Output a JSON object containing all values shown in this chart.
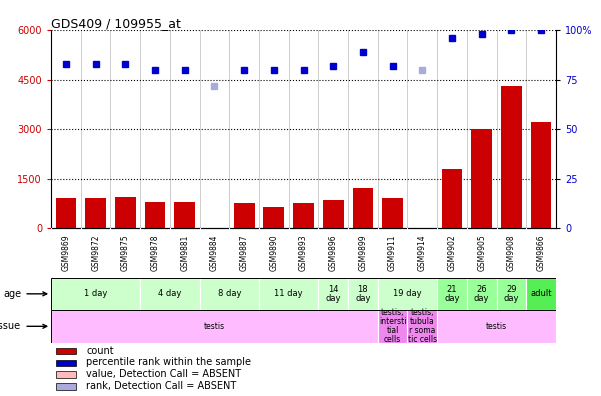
{
  "title": "GDS409 / 109955_at",
  "samples": [
    "GSM9869",
    "GSM9872",
    "GSM9875",
    "GSM9878",
    "GSM9881",
    "GSM9884",
    "GSM9887",
    "GSM9890",
    "GSM9893",
    "GSM9896",
    "GSM9899",
    "GSM9911",
    "GSM9914",
    "GSM9902",
    "GSM9905",
    "GSM9908",
    "GSM9866"
  ],
  "count_values": [
    900,
    900,
    950,
    800,
    800,
    0,
    750,
    650,
    750,
    850,
    1200,
    900,
    0,
    1800,
    3000,
    4300,
    3200
  ],
  "count_absent": [
    false,
    false,
    false,
    false,
    false,
    true,
    false,
    false,
    false,
    false,
    false,
    false,
    true,
    false,
    false,
    false,
    false
  ],
  "rank_values": [
    83,
    83,
    83,
    80,
    80,
    72,
    80,
    80,
    80,
    82,
    89,
    82,
    80,
    96,
    98,
    100,
    100
  ],
  "rank_absent_flags": [
    false,
    false,
    false,
    false,
    false,
    true,
    false,
    false,
    false,
    false,
    false,
    false,
    true,
    false,
    false,
    false,
    false
  ],
  "ylim_left": [
    0,
    6000
  ],
  "ylim_right": [
    0,
    100
  ],
  "yticks_left": [
    0,
    1500,
    3000,
    4500,
    6000
  ],
  "yticks_right": [
    0,
    25,
    50,
    75,
    100
  ],
  "bar_color": "#cc0000",
  "bar_absent_color": "#ffbbbb",
  "rank_color": "#0000cc",
  "rank_absent_color": "#aaaadd",
  "age_groups": [
    {
      "label": "1 day",
      "start": 0,
      "end": 3,
      "color": "#ccffcc"
    },
    {
      "label": "4 day",
      "start": 3,
      "end": 5,
      "color": "#ccffcc"
    },
    {
      "label": "8 day",
      "start": 5,
      "end": 7,
      "color": "#ccffcc"
    },
    {
      "label": "11 day",
      "start": 7,
      "end": 9,
      "color": "#ccffcc"
    },
    {
      "label": "14\nday",
      "start": 9,
      "end": 10,
      "color": "#ccffcc"
    },
    {
      "label": "18\nday",
      "start": 10,
      "end": 11,
      "color": "#ccffcc"
    },
    {
      "label": "19 day",
      "start": 11,
      "end": 13,
      "color": "#ccffcc"
    },
    {
      "label": "21\nday",
      "start": 13,
      "end": 14,
      "color": "#99ff99"
    },
    {
      "label": "26\nday",
      "start": 14,
      "end": 15,
      "color": "#99ff99"
    },
    {
      "label": "29\nday",
      "start": 15,
      "end": 16,
      "color": "#99ff99"
    },
    {
      "label": "adult",
      "start": 16,
      "end": 17,
      "color": "#55ee55"
    }
  ],
  "tissue_groups": [
    {
      "label": "testis",
      "start": 0,
      "end": 11,
      "color": "#ffbbff"
    },
    {
      "label": "testis,\nintersti\ntial\ncells",
      "start": 11,
      "end": 12,
      "color": "#ee88ee"
    },
    {
      "label": "testis,\ntubula\nr soma\ntic cells",
      "start": 12,
      "end": 13,
      "color": "#ee88ee"
    },
    {
      "label": "testis",
      "start": 13,
      "end": 17,
      "color": "#ffbbff"
    }
  ],
  "legend_items": [
    {
      "label": "count",
      "color": "#cc0000"
    },
    {
      "label": "percentile rank within the sample",
      "color": "#0000cc"
    },
    {
      "label": "value, Detection Call = ABSENT",
      "color": "#ffbbbb"
    },
    {
      "label": "rank, Detection Call = ABSENT",
      "color": "#aaaadd"
    }
  ],
  "left_axis_color": "#cc0000",
  "right_axis_color": "#0000cc",
  "background_color": "#ffffff",
  "sample_bg_color": "#dddddd"
}
